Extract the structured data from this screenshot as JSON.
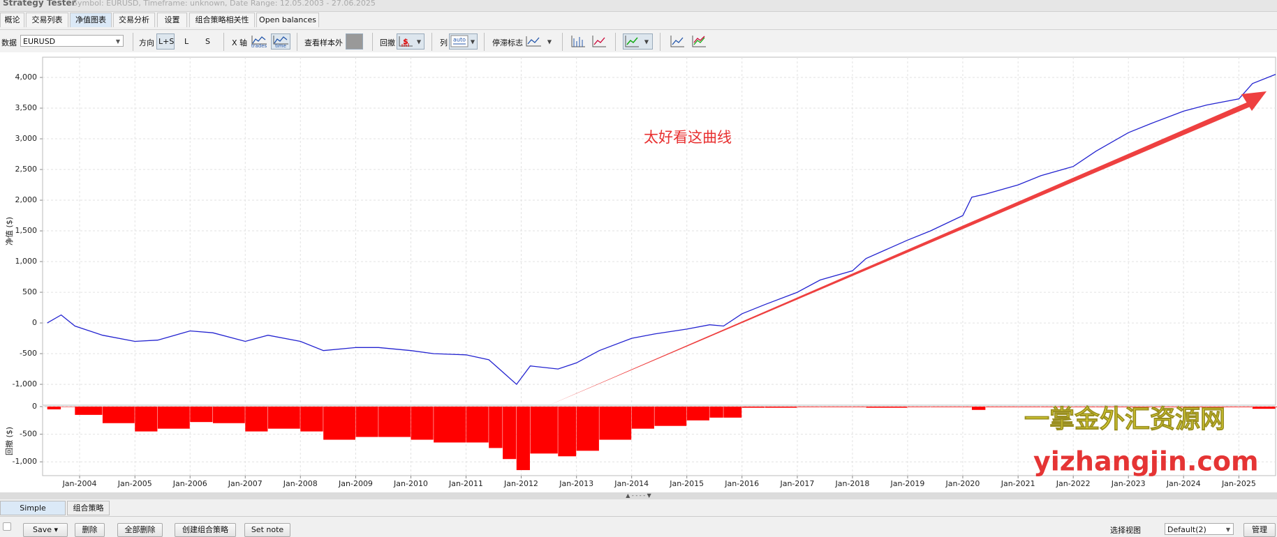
{
  "window": {
    "title": "Strategy Tester",
    "info": "Symbol: EURUSD, Timeframe: unknown, Date Range: 12.05.2003 - 27.06.2025"
  },
  "tabs": [
    "概论",
    "交易列表",
    "净值图表",
    "交易分析",
    "设置",
    "组合策略相关性",
    "Open balances"
  ],
  "active_tab": 2,
  "toolbar": {
    "data_label": "数据",
    "symbol": "EURUSD",
    "direction_label": "方向",
    "directions": [
      "L+S",
      "L",
      "S"
    ],
    "xaxis_label": "X 轴",
    "xaxis_options": [
      "trades",
      "time"
    ],
    "oos_label": "查看样本外",
    "drawdown_label": "回撤",
    "columns_label": "列",
    "columns_option": "auto",
    "stagnation_label": "停滞标志"
  },
  "chart_data": [
    {
      "type": "line",
      "ylabel": "净值 ($)",
      "annotation": "太好看这曲线",
      "color": "#2323d0",
      "grid": true,
      "xlim": [
        "May-2003",
        "Sep-2025"
      ],
      "x": [
        "Jun-2003",
        "Sep-2003",
        "Dec-2003",
        "Jun-2004",
        "Jan-2005",
        "Jun-2005",
        "Jan-2006",
        "Jun-2006",
        "Jan-2007",
        "Jun-2007",
        "Jan-2008",
        "Jun-2008",
        "Jan-2009",
        "Jun-2009",
        "Jan-2010",
        "Jun-2010",
        "Jan-2011",
        "Jun-2011",
        "Sep-2011",
        "Dec-2011",
        "Mar-2012",
        "Sep-2012",
        "Jan-2013",
        "Jun-2013",
        "Jan-2014",
        "Jun-2014",
        "Jan-2015",
        "Jun-2015",
        "Sep-2015",
        "Jan-2016",
        "Jun-2016",
        "Jan-2017",
        "Jun-2017",
        "Jan-2018",
        "Apr-2018",
        "Jan-2019",
        "Jun-2019",
        "Jan-2020",
        "Mar-2020",
        "Jun-2020",
        "Jan-2021",
        "Jun-2021",
        "Jan-2022",
        "Jun-2022",
        "Jan-2023",
        "Jun-2023",
        "Jan-2024",
        "Jun-2024",
        "Jan-2025",
        "Apr-2025",
        "Sep-2025"
      ],
      "values": [
        0,
        130,
        -50,
        -200,
        -300,
        -280,
        -130,
        -160,
        -300,
        -200,
        -300,
        -450,
        -400,
        -400,
        -450,
        -500,
        -520,
        -600,
        -800,
        -1000,
        -700,
        -750,
        -650,
        -450,
        -250,
        -180,
        -100,
        -30,
        -50,
        150,
        300,
        500,
        700,
        850,
        1050,
        1350,
        1500,
        1750,
        2050,
        2100,
        2250,
        2400,
        2550,
        2800,
        3100,
        3250,
        3450,
        3550,
        3650,
        3900,
        4050
      ],
      "ylim": [
        -1340,
        4330
      ],
      "yticks": [
        {
          "value": -1000,
          "label": "-1,000"
        },
        -500,
        0,
        500,
        {
          "value": 1000,
          "label": "1,000"
        },
        {
          "value": 1500,
          "label": "1,500"
        },
        {
          "value": 2000,
          "label": "2,000"
        },
        {
          "value": 2500,
          "label": "2,500"
        },
        {
          "value": 3000,
          "label": "3,000"
        },
        {
          "value": 3500,
          "label": "3,500"
        },
        {
          "value": 4000,
          "label": "4,000"
        }
      ]
    },
    {
      "type": "bar",
      "ylabel": "回撤 ($)",
      "color": "#ff0000",
      "grid": true,
      "xlim": [
        "May-2003",
        "Sep-2025"
      ],
      "x": [
        "Jun-2003",
        "Sep-2003",
        "Dec-2003",
        "Jun-2004",
        "Jan-2005",
        "Jun-2005",
        "Jan-2006",
        "Jun-2006",
        "Jan-2007",
        "Jun-2007",
        "Jan-2008",
        "Jun-2008",
        "Jan-2009",
        "Jun-2009",
        "Jan-2010",
        "Jun-2010",
        "Jan-2011",
        "Jun-2011",
        "Sep-2011",
        "Dec-2011",
        "Mar-2012",
        "Sep-2012",
        "Jan-2013",
        "Jun-2013",
        "Jan-2014",
        "Jun-2014",
        "Jan-2015",
        "Jun-2015",
        "Sep-2015",
        "Jan-2016",
        "Jun-2016",
        "Jan-2017",
        "Jun-2017",
        "Jan-2018",
        "Apr-2018",
        "Jan-2019",
        "Jun-2019",
        "Jan-2020",
        "Mar-2020",
        "Jun-2020",
        "Jan-2021",
        "Jun-2021",
        "Jan-2022",
        "Jun-2022",
        "Jan-2023",
        "Jun-2023",
        "Jan-2024",
        "Jun-2024",
        "Jan-2025",
        "Apr-2025",
        "Sep-2025"
      ],
      "values": [
        -50,
        0,
        -150,
        -300,
        -450,
        -400,
        -280,
        -300,
        -450,
        -400,
        -450,
        -600,
        -550,
        -550,
        -600,
        -650,
        -650,
        -750,
        -950,
        -1150,
        -850,
        -900,
        -800,
        -600,
        -400,
        -350,
        -250,
        -200,
        -200,
        -20,
        -20,
        -10,
        -10,
        -10,
        -20,
        -10,
        -10,
        -10,
        -60,
        -10,
        -10,
        -10,
        -10,
        -10,
        -10,
        -10,
        -10,
        -10,
        -10,
        -40,
        -10
      ],
      "ylim": [
        -1250,
        0
      ],
      "yticks": [
        {
          "value": -1000,
          "label": "-1,000"
        },
        -500,
        0
      ],
      "xticks": [
        "Jan-2004",
        "Jan-2005",
        "Jan-2006",
        "Jan-2007",
        "Jan-2008",
        "Jan-2009",
        "Jan-2010",
        "Jan-2011",
        "Jan-2012",
        "Jan-2013",
        "Jan-2014",
        "Jan-2015",
        "Jan-2016",
        "Jan-2017",
        "Jan-2018",
        "Jan-2019",
        "Jan-2020",
        "Jan-2021",
        "Jan-2022",
        "Jan-2023",
        "Jan-2024",
        "Jan-2025"
      ]
    }
  ],
  "watermark": [
    "一掌金外汇资源网",
    "yizhangjin.com"
  ],
  "bottom": {
    "tabs": [
      "Simple strategies",
      "组合策略"
    ],
    "active_tab": 0,
    "buttons": [
      "Save",
      "删除",
      "全部删除",
      "创建组合策略",
      "Set note"
    ],
    "view_label": "选择视图",
    "view": "Default(2)",
    "manage": "管理"
  }
}
